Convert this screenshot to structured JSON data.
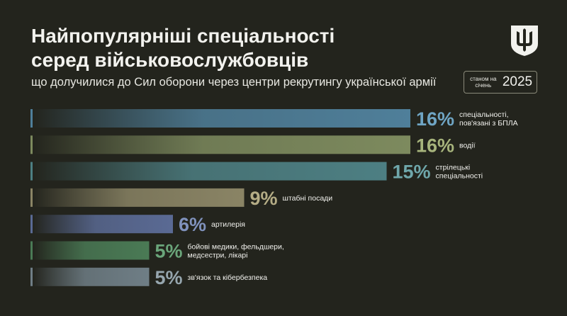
{
  "header": {
    "title_line1": "Найпопулярніші спеціальності",
    "title_line2": "серед військовослужбовців",
    "subtitle": "що долучилися до Сил оборони через центри рекрутингу української армії",
    "date_small": "станом на січень",
    "date_year": "2025",
    "emblem_icon": "trident-emblem-icon"
  },
  "chart_data": {
    "type": "bar",
    "orientation": "horizontal",
    "title": "Найпопулярніші спеціальності серед військовослужбовців",
    "subtitle": "що долучилися до Сил оборони через центри рекрутингу української армії",
    "unit": "%",
    "categories": [
      [
        "спеціальності,",
        "пов'язані з БПЛА"
      ],
      [
        "водії"
      ],
      [
        "стрілецькі",
        "спеціальності"
      ],
      [
        "штабні посади"
      ],
      [
        "артилерія"
      ],
      [
        "бойові медики, фельдшери,",
        "медсестри, лікарі"
      ],
      [
        "зв'язок та кібербезпека"
      ]
    ],
    "values": [
      16,
      16,
      15,
      9,
      6,
      5,
      5
    ],
    "labels": [
      "16%",
      "16%",
      "15%",
      "9%",
      "6%",
      "5%",
      "5%"
    ],
    "colors": [
      "#4f7f9a",
      "#7d8a5e",
      "#4d7f83",
      "#8a8465",
      "#5a6a94",
      "#4a7a55",
      "#6f7e86"
    ],
    "label_colors": [
      "#6fa5c4",
      "#a7b47c",
      "#6fa7ab",
      "#b5ad86",
      "#8092bd",
      "#6aa57a",
      "#96a6ae"
    ],
    "grid": false,
    "legend": "none"
  }
}
